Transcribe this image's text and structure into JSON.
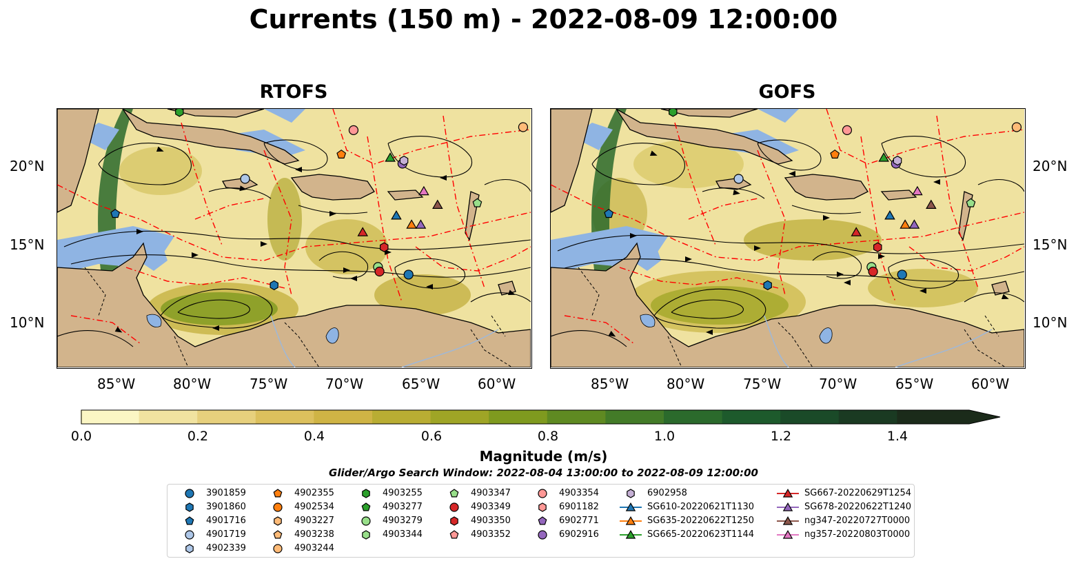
{
  "title": "Currents (150 m) - 2022-08-09 12:00:00",
  "panels": [
    {
      "title": "RTOFS"
    },
    {
      "title": "GOFS"
    }
  ],
  "axes": {
    "lon_ticks": [
      "85°W",
      "80°W",
      "75°W",
      "70°W",
      "65°W",
      "60°W"
    ],
    "lat_ticks": [
      "20°N",
      "15°N",
      "10°N"
    ],
    "lon_range": [
      -89.0,
      -58.0
    ],
    "lat_range": [
      7.0,
      24.0
    ]
  },
  "colorbar": {
    "title": "Magnitude (m/s)",
    "ticks": [
      "0.0",
      "0.2",
      "0.4",
      "0.6",
      "0.8",
      "1.0",
      "1.2",
      "1.4"
    ],
    "range": [
      0.0,
      1.5
    ],
    "extend": "max",
    "colors": [
      "#fbf6c4",
      "#f1e3a0",
      "#e7d07d",
      "#dcc05d",
      "#cfb445",
      "#b9ad33",
      "#9fa526",
      "#7f9a1f",
      "#5f8a22",
      "#437b28",
      "#2b6a2c",
      "#1d5a2c",
      "#1a4a28",
      "#1a3a22",
      "#1b2b1a"
    ]
  },
  "search_window": "Glider/Argo Search Window: 2022-08-04 13:00:00 to 2022-08-09 12:00:00",
  "legend": [
    {
      "label": "3901859",
      "marker": "circle",
      "color": "#1f77b4"
    },
    {
      "label": "3901860",
      "marker": "hexagon",
      "color": "#1f77b4"
    },
    {
      "label": "4901716",
      "marker": "pentagon",
      "color": "#1f77b4"
    },
    {
      "label": "4901719",
      "marker": "circle",
      "color": "#aec7e8"
    },
    {
      "label": "4902339",
      "marker": "hexagon",
      "color": "#aec7e8"
    },
    {
      "label": "4902355",
      "marker": "pentagon",
      "color": "#ff7f0e"
    },
    {
      "label": "4902534",
      "marker": "circle",
      "color": "#ff7f0e"
    },
    {
      "label": "4903227",
      "marker": "hexagon",
      "color": "#ffbb78"
    },
    {
      "label": "4903238",
      "marker": "pentagon",
      "color": "#ffbb78"
    },
    {
      "label": "4903244",
      "marker": "circle",
      "color": "#ffbb78"
    },
    {
      "label": "4903255",
      "marker": "hexagon",
      "color": "#2ca02c"
    },
    {
      "label": "4903277",
      "marker": "pentagon",
      "color": "#2ca02c"
    },
    {
      "label": "4903279",
      "marker": "circle",
      "color": "#98df8a"
    },
    {
      "label": "4903344",
      "marker": "hexagon",
      "color": "#98df8a"
    },
    {
      "label": "4903347",
      "marker": "pentagon",
      "color": "#98df8a"
    },
    {
      "label": "4903349",
      "marker": "circle",
      "color": "#d62728"
    },
    {
      "label": "4903350",
      "marker": "hexagon",
      "color": "#d62728"
    },
    {
      "label": "4903352",
      "marker": "pentagon",
      "color": "#ff9896"
    },
    {
      "label": "4903354",
      "marker": "circle",
      "color": "#ff9896"
    },
    {
      "label": "6901182",
      "marker": "hexagon",
      "color": "#ff9896"
    },
    {
      "label": "6902771",
      "marker": "pentagon",
      "color": "#9467bd"
    },
    {
      "label": "6902916",
      "marker": "circle",
      "color": "#9467bd"
    },
    {
      "label": "6902958",
      "marker": "hexagon",
      "color": "#c5b0d5"
    },
    {
      "label": "SG610-20220621T1130",
      "marker": "triangle",
      "color": "#1f77b4"
    },
    {
      "label": "SG635-20220622T1250",
      "marker": "triangle",
      "color": "#ff7f0e"
    },
    {
      "label": "SG665-20220623T1144",
      "marker": "triangle",
      "color": "#2ca02c"
    },
    {
      "label": "SG667-20220629T1254",
      "marker": "triangle",
      "color": "#d62728"
    },
    {
      "label": "SG678-20220622T1240",
      "marker": "triangle",
      "color": "#9467bd"
    },
    {
      "label": "ng347-20220727T0000",
      "marker": "triangle",
      "color": "#8c564b"
    },
    {
      "label": "ng357-20220803T0000",
      "marker": "triangle",
      "color": "#e377c2"
    }
  ],
  "map": {
    "land_color": "#d2b48c",
    "shelf_color": "#8fb4e3",
    "eez_color": "#ff0000",
    "stream_color": "#000000",
    "markers": [
      {
        "label": "3901859",
        "lon": -66.0,
        "lat": 13.1
      },
      {
        "label": "3901860",
        "lon": -74.8,
        "lat": 12.4
      },
      {
        "label": "4901716",
        "lon": -85.2,
        "lat": 17.1
      },
      {
        "label": "4901719",
        "lon": -76.7,
        "lat": 19.4
      },
      {
        "label": "4903244",
        "lon": -58.5,
        "lat": 22.8
      },
      {
        "label": "4902355",
        "lon": -70.4,
        "lat": 21.0
      },
      {
        "label": "4903255",
        "lon": -81.0,
        "lat": 23.8
      },
      {
        "label": "4903354",
        "lon": -69.6,
        "lat": 22.6
      },
      {
        "label": "4903279",
        "lon": -68.0,
        "lat": 13.6
      },
      {
        "label": "4903349",
        "lon": -67.9,
        "lat": 13.3
      },
      {
        "label": "4903350",
        "lon": -67.6,
        "lat": 14.9
      },
      {
        "label": "6902916",
        "lon": -66.4,
        "lat": 20.4
      },
      {
        "label": "6902958",
        "lon": -66.3,
        "lat": 20.6
      },
      {
        "label": "4903347",
        "lon": -61.5,
        "lat": 17.8
      },
      {
        "label": "SG610-20220621T1130",
        "lon": -66.8,
        "lat": 17.0
      },
      {
        "label": "SG635-20220622T1250",
        "lon": -65.8,
        "lat": 16.4
      },
      {
        "label": "SG678-20220622T1240",
        "lon": -65.2,
        "lat": 16.4
      },
      {
        "label": "SG665-20220623T1144",
        "lon": -67.2,
        "lat": 20.8
      },
      {
        "label": "SG667-20220629T1254",
        "lon": -69.0,
        "lat": 15.9
      },
      {
        "label": "ng347-20220727T0000",
        "lon": -64.1,
        "lat": 17.7
      },
      {
        "label": "ng357-20220803T0000",
        "lon": -65.0,
        "lat": 18.6
      }
    ]
  }
}
